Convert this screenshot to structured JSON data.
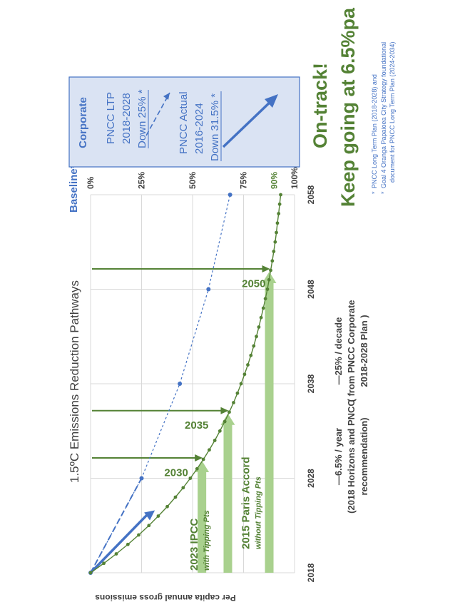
{
  "chart_data": {
    "type": "line",
    "title": "1.5ºC Emissions Reduction Pathways",
    "ylabel": "Per capita annual gross emissions",
    "baseline_label": "Baseline*",
    "x_ticks": [
      "2018",
      "2028",
      "2038",
      "2048",
      "2058"
    ],
    "y_ticks": [
      "0%",
      "25%",
      "50%",
      "75%",
      "100%"
    ],
    "xlim": [
      2018,
      2058
    ],
    "ylim": [
      0,
      100
    ],
    "series": [
      {
        "name": "6.5% / year",
        "legend_lines": [
          "—6.5% / year",
          "(2018 Horizons and PNCC",
          "recommendation)"
        ],
        "color": "#548235",
        "x": [
          2018,
          2019,
          2020,
          2021,
          2022,
          2023,
          2024,
          2025,
          2026,
          2027,
          2028,
          2029,
          2030,
          2031,
          2032,
          2033,
          2034,
          2035,
          2036,
          2037,
          2038,
          2039,
          2040,
          2041,
          2042,
          2043,
          2044,
          2045,
          2046,
          2047,
          2048,
          2049,
          2050,
          2051,
          2052,
          2053,
          2054,
          2055,
          2056,
          2057,
          2058
        ],
        "y": [
          0,
          6.5,
          12.6,
          18.3,
          23.6,
          28.6,
          33.2,
          37.6,
          41.6,
          45.4,
          48.9,
          52.2,
          55.3,
          58.2,
          60.9,
          63.4,
          65.8,
          68.0,
          70.1,
          72.0,
          73.8,
          75.5,
          77.1,
          78.6,
          80.0,
          81.3,
          82.5,
          83.6,
          84.7,
          85.7,
          86.7,
          87.5,
          88.3,
          89.1,
          89.8,
          90.5,
          91.1,
          91.6,
          92.2,
          92.7,
          93.2
        ]
      },
      {
        "name": "25% / decade",
        "legend_lines": [
          "—25% / decade",
          "( from PNCC Corporate",
          "2018-2028 Plan )"
        ],
        "color": "#4472c4",
        "x": [
          2018,
          2028,
          2038,
          2048,
          2058
        ],
        "y": [
          0,
          25,
          43.75,
          57.8,
          68.4
        ]
      }
    ],
    "annotations": {
      "y90": "90%",
      "targets": [
        {
          "label": "2030",
          "year": 2030,
          "bar_label": "2023 IPCC",
          "bar_sub": "with Tipping Pts"
        },
        {
          "label": "2035",
          "year": 2035,
          "bar_label": "",
          "bar_sub": ""
        },
        {
          "label": "2050",
          "year": 2050,
          "bar_label": "2015 Paris Accord",
          "bar_sub": "without Tipping Pts"
        }
      ]
    }
  },
  "box": {
    "title": "Corporate",
    "ltp_line1": "PNCC LTP",
    "ltp_line2": "2018-2028",
    "ltp_line3": "Down 25% *",
    "act_line1": "PNCC Actual",
    "act_line2": "2016-2024",
    "act_line3": "Down 31.5% *"
  },
  "headline": {
    "line1": "On-track!",
    "line2": "Keep going at 6.5%pa"
  },
  "notes": [
    "PNCC Long Term Plan (2018-2028) and",
    "Goal 4 Oranga Papaioea City Strategy foundational",
    "document for PNCC Long Term Plan (2024-2034)"
  ],
  "colors": {
    "green": "#548235",
    "light_green": "#a9d18e",
    "blue": "#4472c4",
    "box_fill": "#dae3f3"
  }
}
